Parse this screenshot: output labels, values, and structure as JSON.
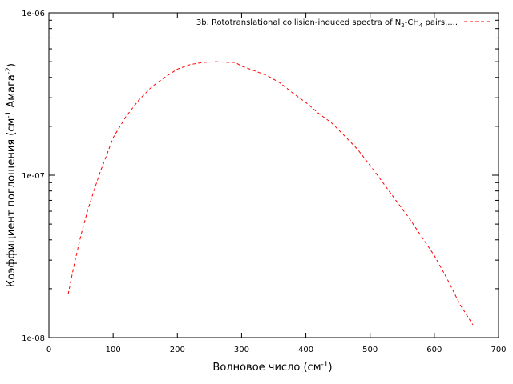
{
  "chart_data": {
    "type": "line",
    "xlabel": "Волновое число (см",
    "xlabel_sup": "-1",
    "xlabel_end": ")",
    "ylabel": "Коэффициент поглощения (см",
    "ylabel_sup1": "-1",
    "ylabel_mid": " Амага",
    "ylabel_sup2": "-2",
    "ylabel_end": ")",
    "xlim": [
      0,
      700
    ],
    "ylim": [
      1e-08,
      1e-06
    ],
    "yscale": "log",
    "xticks": [
      0,
      100,
      200,
      300,
      400,
      500,
      600,
      700
    ],
    "xtick_labels": [
      "0",
      "100",
      "200",
      "300",
      "400",
      "500",
      "600",
      "700"
    ],
    "yticks": [
      1e-08,
      1e-07,
      1e-06
    ],
    "ytick_labels": [
      "1e-08",
      "1e-07",
      "1e-06"
    ],
    "legend_position": "top-right",
    "grid": false,
    "series": [
      {
        "name_pre": "3b. Rototranslational collision-induced spectra of N",
        "name_sub1": "2",
        "name_mid": "-CH",
        "name_sub2": "4",
        "name_post": " pairs.....",
        "color": "#ff0000",
        "style": "dashed",
        "x": [
          30,
          40,
          50,
          60,
          70,
          80,
          90,
          100,
          120,
          140,
          160,
          180,
          200,
          220,
          240,
          260,
          280,
          290,
          300,
          320,
          340,
          360,
          380,
          400,
          420,
          440,
          460,
          480,
          500,
          520,
          540,
          560,
          580,
          600,
          620,
          640,
          660
        ],
        "y": [
          1.85e-08,
          2.9e-08,
          4.3e-08,
          6e-08,
          8e-08,
          1.05e-07,
          1.33e-07,
          1.7e-07,
          2.3e-07,
          2.9e-07,
          3.5e-07,
          4e-07,
          4.5e-07,
          4.8e-07,
          4.95e-07,
          5e-07,
          4.95e-07,
          4.95e-07,
          4.7e-07,
          4.4e-07,
          4.1e-07,
          3.7e-07,
          3.2e-07,
          2.8e-07,
          2.4e-07,
          2.1e-07,
          1.75e-07,
          1.45e-07,
          1.15e-07,
          9e-08,
          7e-08,
          5.5e-08,
          4.2e-08,
          3.2e-08,
          2.3e-08,
          1.6e-08,
          1.2e-08
        ]
      }
    ]
  }
}
